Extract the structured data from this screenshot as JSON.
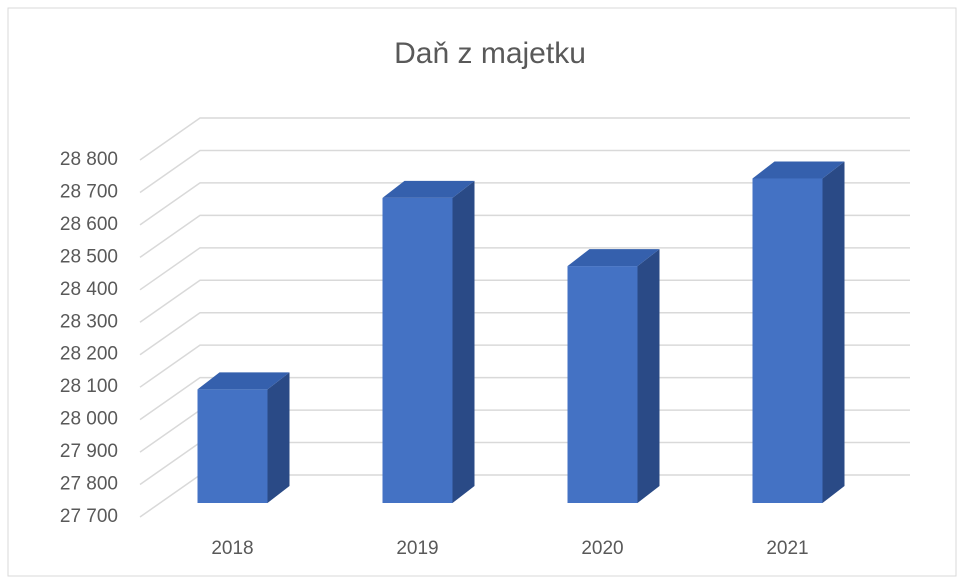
{
  "chart_data": {
    "type": "bar3d",
    "title": "Daň z majetku",
    "categories": [
      "2018",
      "2019",
      "2020",
      "2021"
    ],
    "values": [
      28050,
      28640,
      28430,
      28700
    ],
    "color": "#4472c4",
    "ylim": [
      27700,
      28800
    ],
    "yticks": [
      {
        "value": 27700,
        "label": "27 700"
      },
      {
        "value": 27800,
        "label": "27 800"
      },
      {
        "value": 27900,
        "label": "27 900"
      },
      {
        "value": 28000,
        "label": "28 000"
      },
      {
        "value": 28100,
        "label": "28 100"
      },
      {
        "value": 28200,
        "label": "28 200"
      },
      {
        "value": 28300,
        "label": "28 300"
      },
      {
        "value": 28400,
        "label": "28 400"
      },
      {
        "value": 28500,
        "label": "28 500"
      },
      {
        "value": 28600,
        "label": "28 600"
      },
      {
        "value": 28700,
        "label": "28 700"
      },
      {
        "value": 28800,
        "label": "28 800"
      }
    ],
    "grid": true
  }
}
